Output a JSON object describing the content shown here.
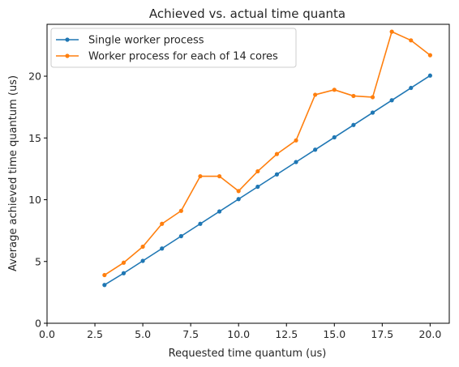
{
  "chart_data": {
    "type": "line",
    "title": "Achieved vs. actual time quanta",
    "xlabel": "Requested time quantum (us)",
    "ylabel": "Average achieved time quantum (us)",
    "xlim": [
      0,
      21
    ],
    "ylim": [
      0,
      24.2
    ],
    "xticks": [
      0,
      2.5,
      5,
      7.5,
      10,
      12.5,
      15,
      17.5,
      20
    ],
    "xtick_labels": [
      "0.0",
      "2.5",
      "5.0",
      "7.5",
      "10.0",
      "12.5",
      "15.0",
      "17.5",
      "20.0"
    ],
    "yticks": [
      0,
      5,
      10,
      15,
      20
    ],
    "ytick_labels": [
      "0",
      "5",
      "10",
      "15",
      "20"
    ],
    "grid": false,
    "legend_position": "top-left",
    "x": [
      3,
      4,
      5,
      6,
      7,
      8,
      9,
      10,
      11,
      12,
      13,
      14,
      15,
      16,
      17,
      18,
      19,
      20
    ],
    "series": [
      {
        "name": "Single worker process",
        "color": "#1f77b4",
        "values": [
          3.1,
          4.05,
          5.05,
          6.05,
          7.05,
          8.05,
          9.05,
          10.05,
          11.05,
          12.05,
          13.05,
          14.05,
          15.05,
          16.05,
          17.05,
          18.05,
          19.05,
          20.05
        ]
      },
      {
        "name": "Worker process for each of 14 cores",
        "color": "#ff7f0e",
        "values": [
          3.9,
          4.9,
          6.2,
          8.05,
          9.1,
          11.9,
          11.9,
          10.7,
          12.3,
          13.7,
          14.8,
          18.5,
          18.9,
          18.4,
          18.3,
          23.6,
          22.9,
          21.7
        ]
      }
    ]
  }
}
